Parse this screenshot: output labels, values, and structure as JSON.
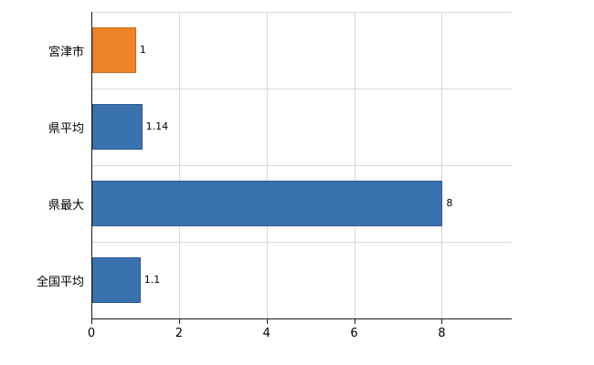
{
  "chart_data": {
    "type": "bar",
    "orientation": "horizontal",
    "title": "",
    "xlabel": "",
    "ylabel": "",
    "categories": [
      "宮津市",
      "県平均",
      "県最大",
      "全国平均"
    ],
    "values": [
      1,
      1.14,
      8,
      1.1
    ],
    "value_labels": [
      "1",
      "1.14",
      "8",
      "1.1"
    ],
    "bar_colors": [
      "#ee8327",
      "#3a72b0",
      "#3a72b0",
      "#3a72b0"
    ],
    "bar_border_colors": [
      "#c56a1a",
      "#2c5a8c",
      "#2c5a8c",
      "#2c5a8c"
    ],
    "xlim": [
      0,
      9.6
    ],
    "x_ticks": [
      "0",
      "2",
      "4",
      "6",
      "8"
    ],
    "x_tick_values": [
      0,
      2,
      4,
      6,
      8
    ],
    "grid": true,
    "legend": null,
    "colors": {
      "grid": "#d9d9d9",
      "axis": "#1a1a1a",
      "text": "#000000",
      "background": "#ffffff"
    }
  }
}
